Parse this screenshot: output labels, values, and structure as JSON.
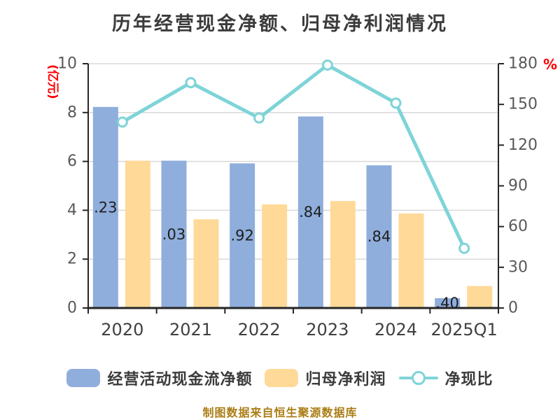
{
  "title": "历年经营现金净额、归母净利润情况",
  "caption": "制图数据来自恒生聚源数据库",
  "colors": {
    "cash_bar": "#8FAEDC",
    "profit_bar": "#FFD998",
    "ratio_line": "#7ED4D8",
    "grid": "#D9D9D9",
    "axis_line": "#262626",
    "tick_label": "#595959",
    "x_label": "#404040",
    "bar_label": "#1F1F1F",
    "unit_label": "#FF0000",
    "title": "#3B3B3B",
    "caption": "#AA7D14"
  },
  "legend": [
    {
      "label": "经营活动现金流净额",
      "swatch": "cash"
    },
    {
      "label": "归母净利润",
      "swatch": "profit"
    },
    {
      "label": "净现比",
      "swatch": "line-marker"
    }
  ],
  "left_axis": {
    "unit": "(亿元)",
    "ticks": [
      0,
      2,
      4,
      6,
      8,
      10
    ],
    "max": 10
  },
  "right_axis": {
    "unit": "%",
    "ticks": [
      0,
      30,
      60,
      90,
      120,
      150,
      180
    ],
    "max": 180
  },
  "chart_data": {
    "type": "bar",
    "categories": [
      "2020",
      "2021",
      "2022",
      "2023",
      "2024",
      "2025Q1"
    ],
    "series": [
      {
        "name": "经营活动现金流净额",
        "type": "bar",
        "axis": "left",
        "values": [
          8.23,
          6.03,
          5.92,
          7.84,
          5.84,
          0.4
        ],
        "visible_labels": [
          ".23",
          ".03",
          ".92",
          ".84",
          ".84",
          ".40"
        ]
      },
      {
        "name": "归母净利润",
        "type": "bar",
        "axis": "left",
        "values": [
          6.03,
          3.63,
          4.24,
          4.38,
          3.87,
          0.9
        ]
      },
      {
        "name": "净现比",
        "type": "line",
        "axis": "right",
        "values": [
          137,
          166,
          140,
          179,
          151,
          44
        ]
      }
    ],
    "ylim_left": [
      0,
      10
    ],
    "ylim_right": [
      0,
      180
    ],
    "grid": "horizontal",
    "legend_position": "bottom"
  }
}
